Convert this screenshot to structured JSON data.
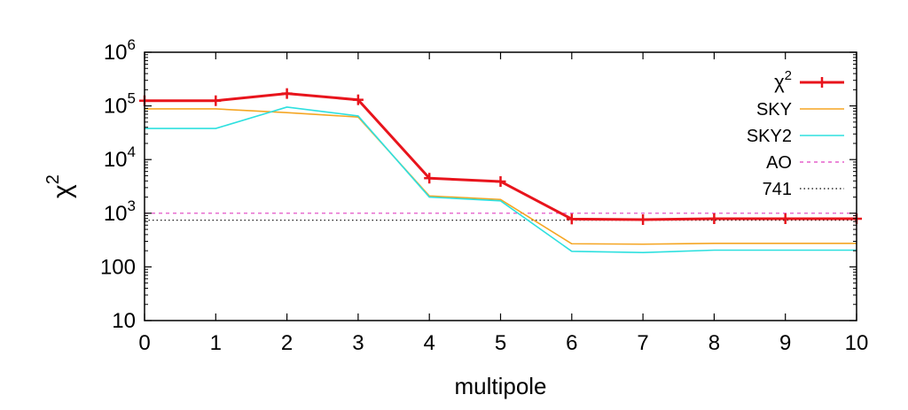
{
  "chart_data": {
    "type": "line",
    "xlabel": "multipole",
    "ylabel": "χ2",
    "ylabel_base": "χ",
    "ylabel_sup": "2",
    "xlim": [
      0,
      10
    ],
    "ylim": [
      10,
      1000000
    ],
    "yscale": "log",
    "grid": false,
    "legend_placement": "top-right",
    "x_ticks": [
      "0",
      "1",
      "2",
      "3",
      "4",
      "5",
      "6",
      "7",
      "8",
      "9",
      "10"
    ],
    "y_ticks": [
      {
        "value": 10,
        "label": "10",
        "sup": ""
      },
      {
        "value": 100,
        "label": "100",
        "sup": ""
      },
      {
        "value": 1000,
        "label": "10",
        "sup": "3"
      },
      {
        "value": 10000,
        "label": "10",
        "sup": "4"
      },
      {
        "value": 100000,
        "label": "10",
        "sup": "5"
      },
      {
        "value": 1000000,
        "label": "10",
        "sup": "6"
      }
    ],
    "series": [
      {
        "name": "χ2",
        "name_base": "χ",
        "name_sup": "2",
        "color": "#e8141c",
        "style": "solid-markers",
        "x": [
          0,
          1,
          2,
          3,
          4,
          5,
          6,
          7,
          8,
          9,
          10
        ],
        "values": [
          125000,
          125000,
          170000,
          130000,
          4500,
          3900,
          780,
          760,
          790,
          790,
          790
        ]
      },
      {
        "name": "SKY",
        "color": "#f5a623",
        "style": "solid",
        "x": [
          0,
          1,
          2,
          3,
          4,
          5,
          6,
          7,
          8,
          9,
          10
        ],
        "values": [
          88000,
          88000,
          75000,
          62000,
          2100,
          1800,
          270,
          265,
          275,
          275,
          275
        ]
      },
      {
        "name": "SKY2",
        "color": "#2ee0df",
        "style": "solid",
        "x": [
          0,
          1,
          2,
          3,
          4,
          5,
          6,
          7,
          8,
          9,
          10
        ],
        "values": [
          38000,
          38000,
          95000,
          65000,
          2000,
          1700,
          195,
          185,
          205,
          205,
          205
        ]
      },
      {
        "name": "AO",
        "color": "#e040c0",
        "style": "dashed",
        "x": [
          0,
          10
        ],
        "values": [
          1000,
          1000
        ]
      },
      {
        "name": "741",
        "color": "#000000",
        "style": "dotted",
        "x": [
          0,
          10
        ],
        "values": [
          741,
          741
        ]
      }
    ]
  }
}
